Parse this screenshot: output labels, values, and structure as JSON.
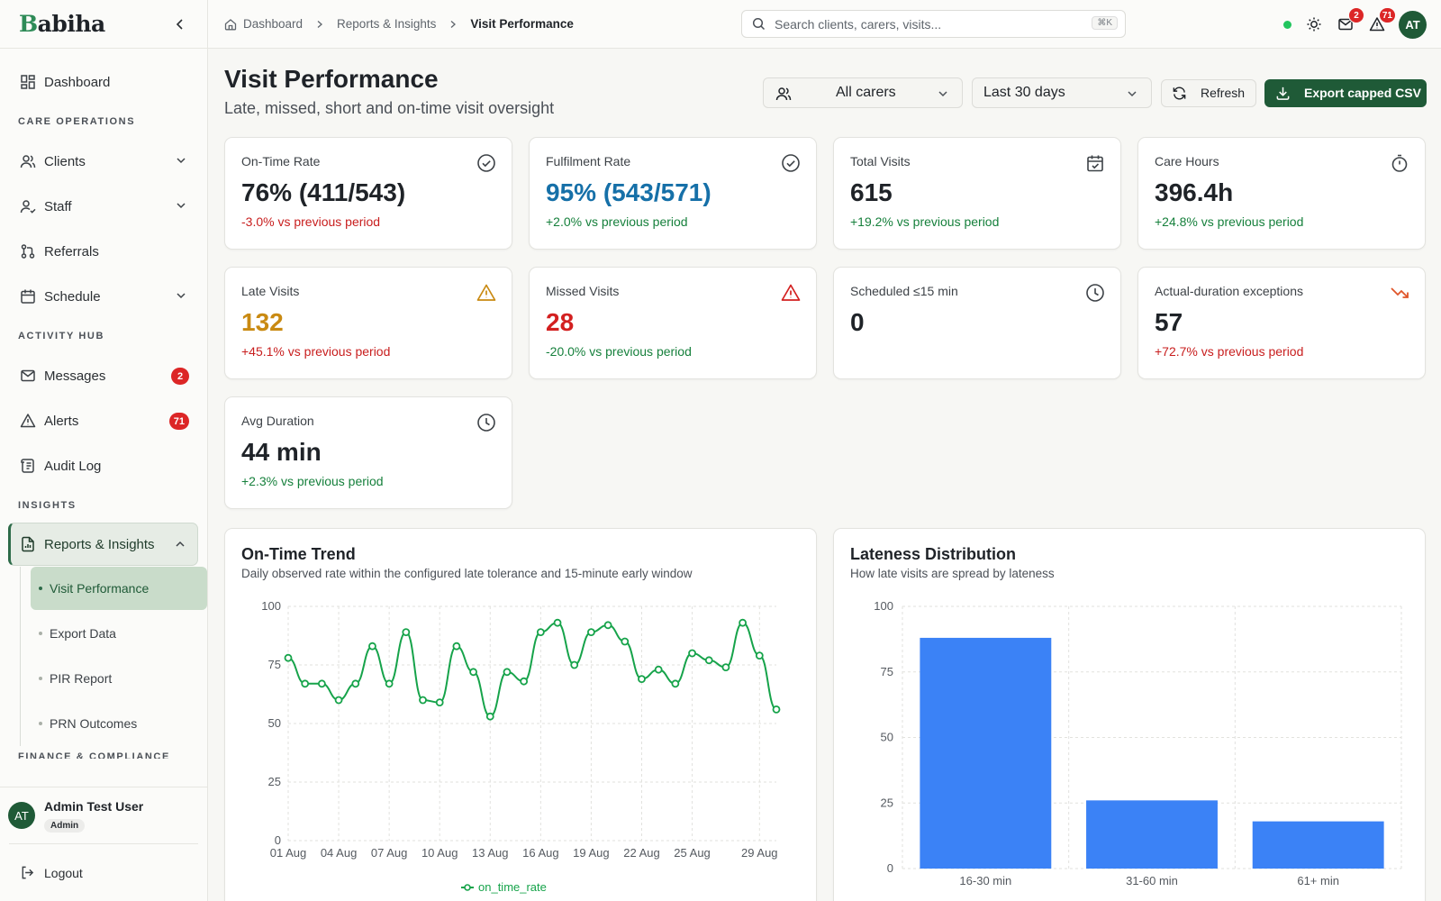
{
  "sidebar": {
    "logo_initial": "B",
    "logo_rest": "abiha",
    "items": {
      "dashboard": "Dashboard",
      "care_ops_label": "CARE OPERATIONS",
      "clients": "Clients",
      "staff": "Staff",
      "referrals": "Referrals",
      "schedule": "Schedule",
      "activity_label": "ACTIVITY HUB",
      "messages": "Messages",
      "messages_badge": "2",
      "alerts": "Alerts",
      "alerts_badge": "71",
      "audit": "Audit Log",
      "insights_label": "INSIGHTS",
      "reports": "Reports & Insights",
      "finance_label": "FINANCE & COMPLIANCE"
    },
    "subitems": [
      "Visit Performance",
      "Export Data",
      "PIR Report",
      "PRN Outcomes"
    ],
    "user": {
      "initials": "AT",
      "name": "Admin Test User",
      "role": "Admin"
    },
    "logout": "Logout"
  },
  "topbar": {
    "breadcrumbs": [
      "Dashboard",
      "Reports & Insights",
      "Visit Performance"
    ],
    "search_placeholder": "Search clients, carers, visits...",
    "search_shortcut": "⌘K",
    "mail_badge": "2",
    "alert_badge": "71",
    "avatar": "AT"
  },
  "page": {
    "title": "Visit Performance",
    "subtitle": "Late, missed, short and on-time visit oversight",
    "carer_filter": "All carers",
    "period_filter": "Last 30 days",
    "refresh": "Refresh",
    "export": "Export capped CSV"
  },
  "cards": [
    {
      "label": "On-Time Rate",
      "value": "76% (411/543)",
      "delta": "-3.0% vs previous period",
      "value_color": "#1f2328",
      "delta_tone": "neg",
      "icon": "check-circle-icon"
    },
    {
      "label": "Fulfilment Rate",
      "value": "95% (543/571)",
      "delta": "+2.0% vs previous period",
      "value_color": "#1670a8",
      "delta_tone": "pos",
      "icon": "check-circle-icon"
    },
    {
      "label": "Total Visits",
      "value": "615",
      "delta": "+19.2% vs previous period",
      "value_color": "#1f2328",
      "delta_tone": "pos",
      "icon": "calendar-check-icon"
    },
    {
      "label": "Care Hours",
      "value": "396.4h",
      "delta": "+24.8% vs previous period",
      "value_color": "#1f2328",
      "delta_tone": "pos",
      "icon": "stopwatch-icon"
    },
    {
      "label": "Late Visits",
      "value": "132",
      "delta": "+45.1% vs previous period",
      "value_color": "#c98a12",
      "delta_tone": "neg",
      "icon": "warning-icon"
    },
    {
      "label": "Missed Visits",
      "value": "28",
      "delta": "-20.0% vs previous period",
      "value_color": "#d32020",
      "delta_tone": "pos",
      "icon": "alert-triangle-icon"
    },
    {
      "label": "Scheduled ≤15 min",
      "value": "0",
      "delta": "",
      "value_color": "#1f2328",
      "delta_tone": "pos",
      "icon": "clock-icon"
    },
    {
      "label": "Actual-duration exceptions",
      "value": "57",
      "delta": "+72.7% vs previous period",
      "value_color": "#1f2328",
      "delta_tone": "neg",
      "icon": "trending-down-icon"
    },
    {
      "label": "Avg Duration",
      "value": "44 min",
      "delta": "+2.3% vs previous period",
      "value_color": "#1f2328",
      "delta_tone": "pos",
      "icon": "clock-icon"
    }
  ],
  "chart_data": [
    {
      "type": "line",
      "title": "On-Time Trend",
      "subtitle": "Daily observed rate within the configured late tolerance and 15-minute early window",
      "x": [
        "01 Aug",
        "02 Aug",
        "03 Aug",
        "04 Aug",
        "05 Aug",
        "06 Aug",
        "07 Aug",
        "08 Aug",
        "09 Aug",
        "10 Aug",
        "11 Aug",
        "12 Aug",
        "13 Aug",
        "14 Aug",
        "15 Aug",
        "16 Aug",
        "17 Aug",
        "18 Aug",
        "19 Aug",
        "20 Aug",
        "21 Aug",
        "22 Aug",
        "23 Aug",
        "24 Aug",
        "25 Aug",
        "26 Aug",
        "27 Aug",
        "28 Aug",
        "29 Aug",
        "30 Aug"
      ],
      "x_ticks": [
        "01 Aug",
        "04 Aug",
        "07 Aug",
        "10 Aug",
        "13 Aug",
        "16 Aug",
        "19 Aug",
        "22 Aug",
        "25 Aug",
        "29 Aug"
      ],
      "series": [
        {
          "name": "on_time_rate",
          "values": [
            78,
            67,
            67,
            60,
            67,
            83,
            67,
            89,
            60,
            59,
            83,
            72,
            53,
            72,
            68,
            89,
            93,
            75,
            89,
            92,
            85,
            69,
            73,
            67,
            80,
            77,
            74,
            93,
            79,
            56
          ]
        }
      ],
      "ylim": [
        0,
        100
      ],
      "y_ticks": [
        0,
        25,
        50,
        75,
        100
      ],
      "color": "#16a34a",
      "grid": true,
      "legend": "bottom"
    },
    {
      "type": "bar",
      "title": "Lateness Distribution",
      "subtitle": "How late visits are spread by lateness",
      "categories": [
        "16-30 min",
        "31-60 min",
        "61+ min"
      ],
      "values": [
        88,
        26,
        18
      ],
      "ylim": [
        0,
        100
      ],
      "y_ticks": [
        0,
        25,
        50,
        75,
        100
      ],
      "color": "#3b82f6",
      "grid": true
    }
  ]
}
